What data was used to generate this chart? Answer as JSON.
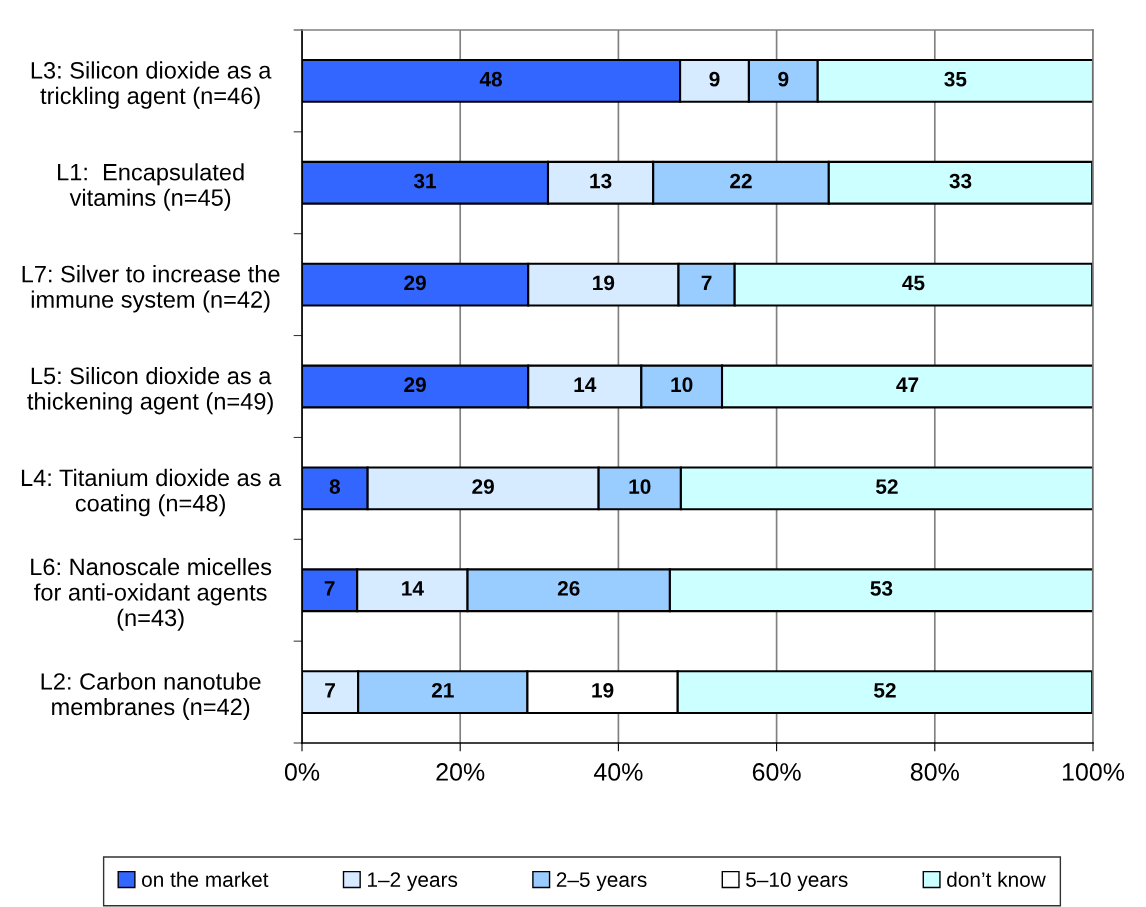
{
  "chart_data": {
    "type": "bar",
    "orientation": "horizontal",
    "stacked": true,
    "categories": [
      "L3: Silicon dioxide as a\ntrickling agent (n=46)",
      "L1:  Encapsulated\nvitamins (n=45)",
      "L7: Silver to increase the\nimmune system (n=42)",
      "L5: Silicon dioxide as a\nthickening agent (n=49)",
      "L4: Titanium dioxide as a\ncoating (n=48)",
      "L6: Nanoscale micelles\nfor anti-oxidant agents\n(n=43)",
      "L2: Carbon nanotube\nmembranes (n=42)"
    ],
    "series": [
      {
        "name": "on the market",
        "color": "#3366ff",
        "values": [
          47.8,
          31.1,
          28.6,
          28.6,
          8.3,
          6.98,
          null
        ],
        "value_labels": [
          "48",
          "31",
          "29",
          "29",
          "8",
          "7",
          null
        ]
      },
      {
        "name": "1–2 years",
        "color": "#d6ebff",
        "values": [
          8.7,
          13.3,
          19.0,
          14.3,
          29.2,
          13.95,
          7.1
        ],
        "value_labels": [
          "9",
          "13",
          "19",
          "14",
          "29",
          "14",
          "7"
        ]
      },
      {
        "name": "2–5 years",
        "color": "#99ccff",
        "values": [
          8.7,
          22.2,
          7.1,
          10.2,
          10.4,
          25.58,
          21.4
        ],
        "value_labels": [
          "9",
          "22",
          "7",
          "10",
          "10",
          "26",
          "21"
        ]
      },
      {
        "name": "5–10 years",
        "color": "#ffffff",
        "values": [
          null,
          null,
          null,
          null,
          null,
          null,
          19.0
        ],
        "value_labels": [
          null,
          null,
          null,
          null,
          null,
          null,
          "19"
        ]
      },
      {
        "name": "don’t know",
        "color": "#ccffff",
        "values": [
          34.8,
          33.3,
          45.2,
          46.9,
          52.1,
          53.49,
          52.4
        ],
        "value_labels": [
          "35",
          "33",
          "45",
          "47",
          "52",
          "53",
          "52"
        ]
      }
    ],
    "xlim": [
      0,
      100
    ],
    "xticks": [
      {
        "value": 0,
        "label": "0%"
      },
      {
        "value": 20,
        "label": "20%"
      },
      {
        "value": 40,
        "label": "40%"
      },
      {
        "value": 60,
        "label": "60%"
      },
      {
        "value": 80,
        "label": "80%"
      },
      {
        "value": 100,
        "label": "100%"
      }
    ],
    "grid": "x",
    "legend": "bottom"
  }
}
